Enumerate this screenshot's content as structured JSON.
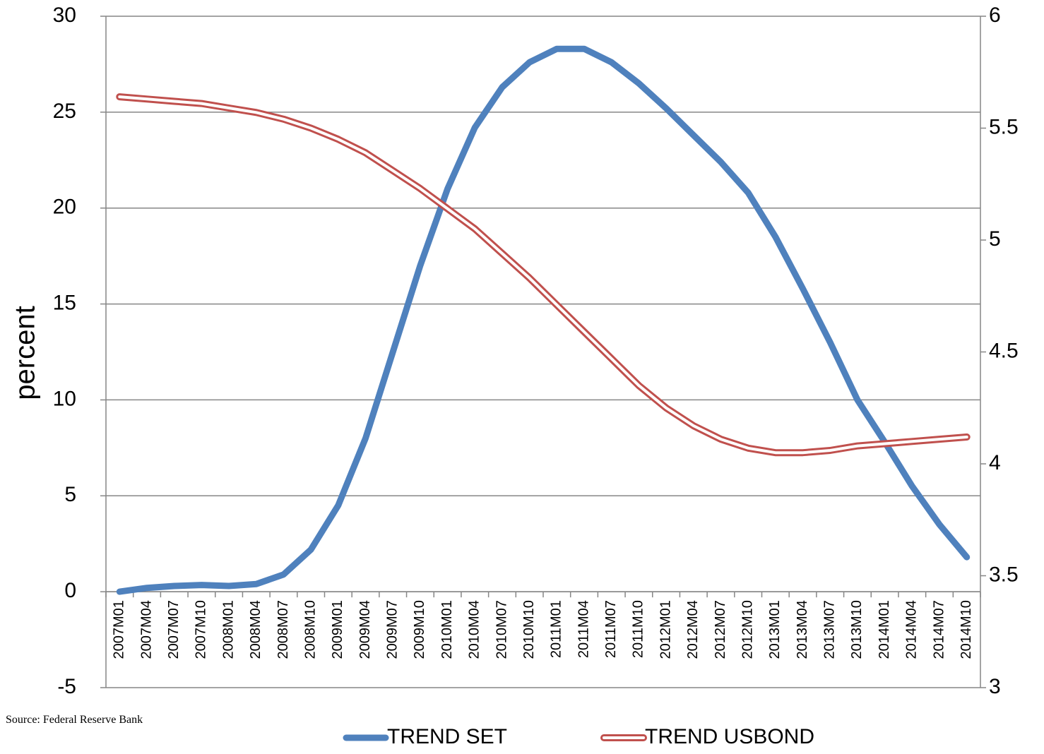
{
  "chart_data": {
    "type": "line",
    "ylabel": "percent",
    "source": "Source: Federal Reserve Bank",
    "categories": [
      "2007M01",
      "2007M04",
      "2007M07",
      "2007M10",
      "2008M01",
      "2008M04",
      "2008M07",
      "2008M10",
      "2009M01",
      "2009M04",
      "2009M07",
      "2009M10",
      "2010M01",
      "2010M04",
      "2010M07",
      "2010M10",
      "2011M01",
      "2011M04",
      "2011M07",
      "2011M10",
      "2012M01",
      "2012M04",
      "2012M07",
      "2012M10",
      "2013M01",
      "2013M04",
      "2013M07",
      "2013M10",
      "2014M01",
      "2014M04",
      "2014M07",
      "2014M10"
    ],
    "series": [
      {
        "name": "TREND SET",
        "color": "#4f81bd",
        "line_style": "solid",
        "values": [
          0,
          0.2,
          0.3,
          0.35,
          0.3,
          0.4,
          0.9,
          2.2,
          4.5,
          8,
          12.5,
          17,
          21,
          24.2,
          26.3,
          27.6,
          28.3,
          28.3,
          27.6,
          26.5,
          25.2,
          23.8,
          22.4,
          20.8,
          18.5,
          15.8,
          13,
          10,
          7.8,
          5.5,
          3.5,
          1.8
        ]
      },
      {
        "name": "TREND USBOND",
        "color": "#c0504d",
        "line_style": "outline",
        "axis": "y2",
        "values": [
          5.64,
          5.63,
          5.62,
          5.61,
          5.59,
          5.57,
          5.54,
          5.5,
          5.45,
          5.39,
          5.31,
          5.23,
          5.14,
          5.05,
          4.94,
          4.83,
          4.71,
          4.59,
          4.47,
          4.35,
          4.25,
          4.17,
          4.11,
          4.07,
          4.05,
          4.05,
          4.06,
          4.08,
          4.09,
          4.1,
          4.11,
          4.12
        ]
      }
    ],
    "ylim": [
      -5,
      30
    ],
    "yticks": [
      -5,
      0,
      5,
      10,
      15,
      20,
      25,
      30
    ],
    "y2lim": [
      3,
      6
    ],
    "y2ticks": [
      3,
      3.5,
      4,
      4.5,
      5,
      5.5,
      6
    ],
    "grid": true,
    "legend": "bottom"
  }
}
